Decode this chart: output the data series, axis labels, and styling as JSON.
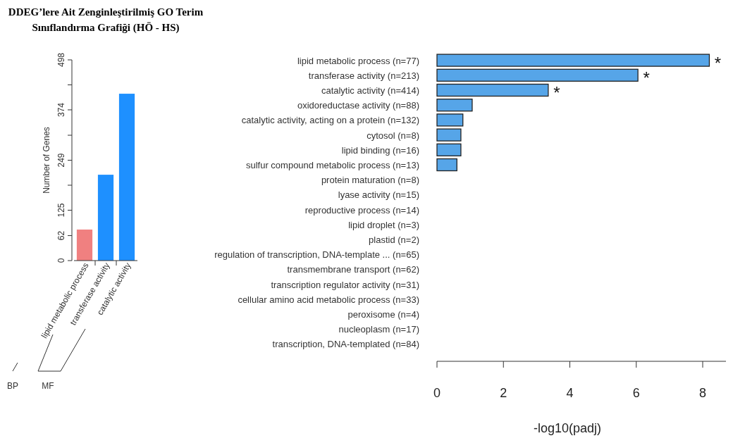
{
  "chart_data": [
    {
      "type": "bar",
      "title": "DDEG’lere Ait Zenginleştirilmiş GO Terim Sınıflandırma Grafiği (HÖ - HS)",
      "ylabel": "Number of Genes",
      "categories": [
        "lipid metabolic process",
        "transferase activity",
        "catalytic activity"
      ],
      "values": [
        77,
        213,
        414
      ],
      "colors": [
        "#f08080",
        "#1e90ff",
        "#1e90ff"
      ],
      "ylim": [
        0,
        498
      ],
      "yticks": [
        0,
        62,
        125,
        {
          "value": 187,
          "label": null
        },
        249,
        {
          "value": 311,
          "label": null
        },
        374,
        {
          "value": 436,
          "label": null
        },
        498
      ],
      "annotations": [
        "BP",
        "MF"
      ]
    },
    {
      "type": "bar",
      "orientation": "horizontal",
      "xlabel": "-log10(padj)",
      "categories": [
        "lipid metabolic process (n=77)",
        "transferase activity (n=213)",
        "catalytic activity (n=414)",
        "oxidoreductase activity (n=88)",
        "catalytic activity, acting on a protein (n=132)",
        "cytosol (n=8)",
        "lipid binding (n=16)",
        "sulfur compound metabolic process (n=13)",
        "protein maturation (n=8)",
        "lyase activity (n=15)",
        "reproductive process (n=14)",
        "lipid droplet (n=3)",
        "plastid (n=2)",
        "regulation of transcription, DNA-template ... (n=65)",
        "transmembrane transport (n=62)",
        "transcription regulator activity (n=31)",
        "cellular amino acid metabolic process (n=33)",
        "peroxisome (n=4)",
        "nucleoplasm (n=17)",
        "transcription, DNA-templated (n=84)"
      ],
      "values": [
        8.2,
        6.05,
        3.35,
        1.06,
        0.78,
        0.72,
        0.72,
        0.6,
        0,
        0,
        0,
        0,
        0,
        0,
        0,
        0,
        0,
        0,
        0,
        0
      ],
      "color": "#56a5e8",
      "xlim": [
        0,
        8.7
      ],
      "xticks": [
        0,
        2,
        4,
        6,
        8
      ],
      "annotations": [
        {
          "text": "*",
          "x": 8.2,
          "y": "lipid metabolic process (n=77)"
        },
        {
          "text": "*",
          "x": 6.05,
          "y": "transferase activity (n=213)"
        },
        {
          "text": "*",
          "x": 3.35,
          "y": "catalytic activity (n=414)"
        }
      ]
    }
  ]
}
